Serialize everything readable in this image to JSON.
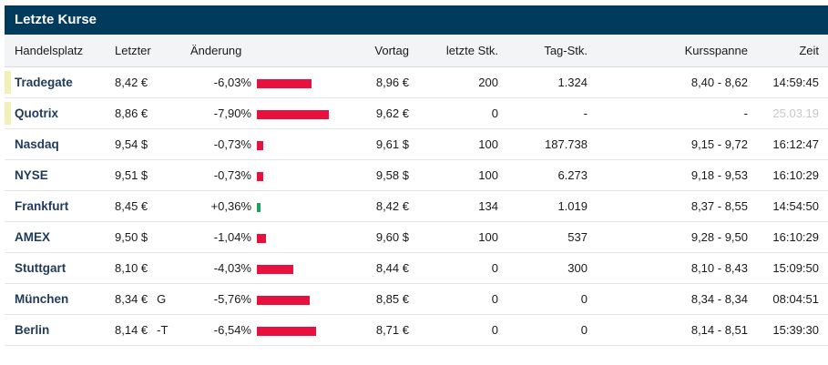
{
  "panel": {
    "title": "Letzte Kurse"
  },
  "columns": {
    "place": "Handelsplatz",
    "last": "Letzter",
    "change": "Änderung",
    "prev": "Vortag",
    "last_qty": "letzte Stk.",
    "day_qty": "Tag-Stk.",
    "range": "Kursspanne",
    "time": "Zeit"
  },
  "colors": {
    "header_bg": "#003a5d",
    "negative": "#e8103c",
    "positive": "#1aa35a",
    "marker": "#f2efb8"
  },
  "rows": [
    {
      "place": "Tradegate",
      "last": "8,42 €",
      "flag": "",
      "change": "-6,03%",
      "change_pct": -6.03,
      "prev": "8,96 €",
      "last_qty": "200",
      "day_qty": "1.324",
      "range": "8,40 - 8,62",
      "time": "14:59:45",
      "marker": true,
      "time_grey": false
    },
    {
      "place": "Quotrix",
      "last": "8,86 €",
      "flag": "",
      "change": "-7,90%",
      "change_pct": -7.9,
      "prev": "9,62 €",
      "last_qty": "0",
      "day_qty": "-",
      "range": "-",
      "time": "25.03.19",
      "marker": true,
      "time_grey": true
    },
    {
      "place": "Nasdaq",
      "last": "9,54 $",
      "flag": "",
      "change": "-0,73%",
      "change_pct": -0.73,
      "prev": "9,61 $",
      "last_qty": "100",
      "day_qty": "187.738",
      "range": "9,15 - 9,72",
      "time": "16:12:47",
      "marker": false,
      "time_grey": false
    },
    {
      "place": "NYSE",
      "last": "9,51 $",
      "flag": "",
      "change": "-0,73%",
      "change_pct": -0.73,
      "prev": "9,58 $",
      "last_qty": "100",
      "day_qty": "6.273",
      "range": "9,18 - 9,53",
      "time": "16:10:29",
      "marker": false,
      "time_grey": false
    },
    {
      "place": "Frankfurt",
      "last": "8,45 €",
      "flag": "",
      "change": "+0,36%",
      "change_pct": 0.36,
      "prev": "8,42 €",
      "last_qty": "134",
      "day_qty": "1.019",
      "range": "8,37 - 8,55",
      "time": "14:54:50",
      "marker": false,
      "time_grey": false
    },
    {
      "place": "AMEX",
      "last": "9,50 $",
      "flag": "",
      "change": "-1,04%",
      "change_pct": -1.04,
      "prev": "9,60 $",
      "last_qty": "100",
      "day_qty": "537",
      "range": "9,28 - 9,50",
      "time": "16:10:29",
      "marker": false,
      "time_grey": false
    },
    {
      "place": "Stuttgart",
      "last": "8,10 €",
      "flag": "",
      "change": "-4,03%",
      "change_pct": -4.03,
      "prev": "8,44 €",
      "last_qty": "0",
      "day_qty": "300",
      "range": "8,10 - 8,43",
      "time": "15:09:50",
      "marker": false,
      "time_grey": false
    },
    {
      "place": "München",
      "last": "8,34 €",
      "flag": "G",
      "change": "-5,76%",
      "change_pct": -5.76,
      "prev": "8,85 €",
      "last_qty": "0",
      "day_qty": "0",
      "range": "8,34 - 8,34",
      "time": "08:04:51",
      "marker": false,
      "time_grey": false
    },
    {
      "place": "Berlin",
      "last": "8,14 €",
      "flag": "-T",
      "change": "-6,54%",
      "change_pct": -6.54,
      "prev": "8,71 €",
      "last_qty": "0",
      "day_qty": "0",
      "range": "8,14 - 8,51",
      "time": "15:39:30",
      "marker": false,
      "time_grey": false
    }
  ]
}
